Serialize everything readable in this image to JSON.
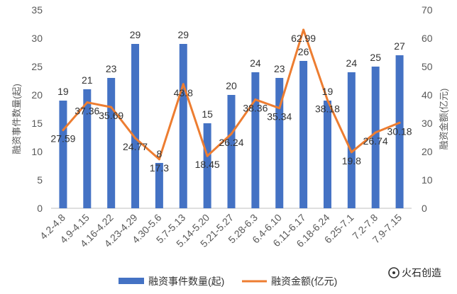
{
  "chart_data": {
    "type": "bar",
    "categories": [
      "4.2-4.8",
      "4.9-4.15",
      "4.16-4.22",
      "4.23-4.29",
      "4.30-5.6",
      "5.7-5.13",
      "5.14-5.20",
      "5.21-5.27",
      "5.28-6.3",
      "6.4-6.10",
      "6.11-6.17",
      "6.18-6.24",
      "6.25-7.1",
      "7.2-7.8",
      "7.9-7.15"
    ],
    "series": [
      {
        "name": "融资事件数量(起)",
        "type": "bar",
        "axis": "left",
        "color": "#4472C4",
        "values": [
          19,
          21,
          23,
          29,
          8,
          29,
          15,
          20,
          24,
          23,
          26,
          19,
          24,
          25,
          27
        ],
        "labels": [
          "19",
          "21",
          "23",
          "29",
          "8",
          "29",
          "15",
          "20",
          "24",
          "23",
          "26",
          "19",
          "24",
          "25",
          "27"
        ]
      },
      {
        "name": "融资金额(亿元)",
        "type": "line",
        "axis": "right",
        "color": "#ED7D31",
        "values": [
          27.59,
          37.36,
          35.69,
          24.77,
          17.3,
          43.8,
          18.45,
          26.24,
          38.36,
          35.34,
          62.99,
          38.18,
          19.8,
          26.74,
          30.18
        ],
        "labels": [
          "27.59",
          "37.36",
          "35.69",
          "24.77",
          "17.3",
          "43.8",
          "18.45",
          "26.24",
          "38.36",
          "35.34",
          "62.99",
          "38.18",
          "19.8",
          "26.74",
          "30.18"
        ]
      }
    ],
    "ylabel": "融资事件数量(起)",
    "y2label": "融资金额(亿元)",
    "ylim": [
      0,
      35
    ],
    "y2lim": [
      0,
      70
    ],
    "yticks": [
      "0",
      "5",
      "10",
      "15",
      "20",
      "25",
      "30",
      "35"
    ],
    "y2ticks": [
      "0",
      "10",
      "20",
      "30",
      "40",
      "50",
      "60",
      "70"
    ],
    "grid": false,
    "legend": "bottom"
  },
  "watermark": {
    "brand": "火石创造"
  }
}
